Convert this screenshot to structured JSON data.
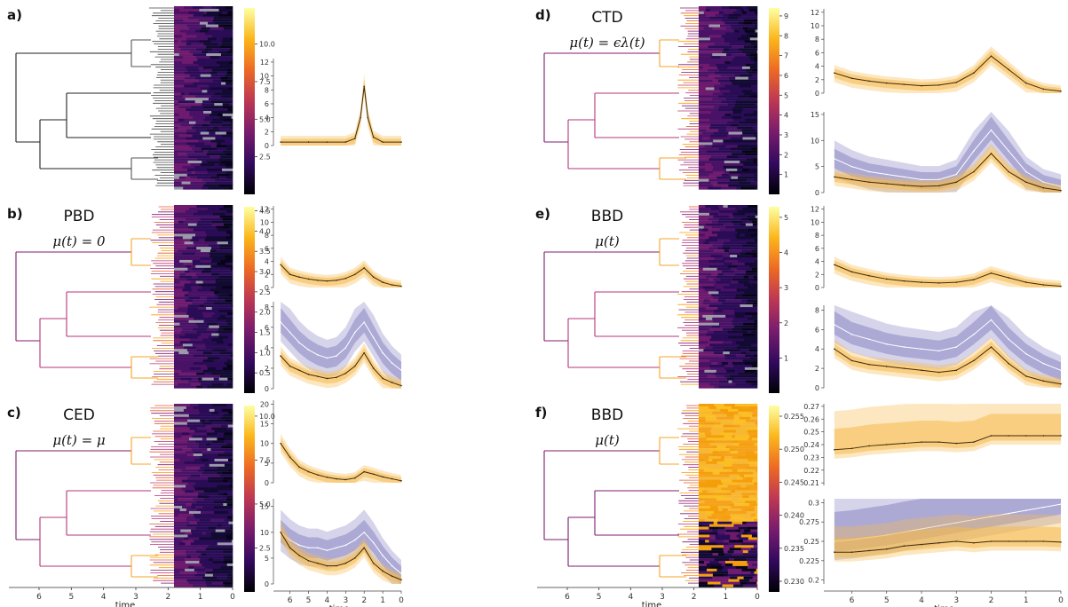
{
  "panels": [
    {
      "id": "a",
      "label": "a)",
      "title": "",
      "subtitle": "",
      "colorbar_ticks": [
        "10.0",
        "7.5",
        "5.0",
        "2.5"
      ],
      "colorbar_max": 12.4
    },
    {
      "id": "b",
      "label": "b)",
      "title": "PBD",
      "subtitle": "μ(t) = 0",
      "colorbar_ticks": [
        "4.5",
        "4.0",
        "3.5",
        "3.0",
        "2.5",
        "2.0",
        "1.5",
        "1.0",
        "0.5"
      ],
      "colorbar_max": 4.6
    },
    {
      "id": "c",
      "label": "c)",
      "title": "CED",
      "subtitle": "μ(t) = μ",
      "colorbar_ticks": [
        "10.0",
        "7.5",
        "5.0",
        "2.5"
      ],
      "colorbar_max": 10.6
    },
    {
      "id": "d",
      "label": "d)",
      "title": "CTD",
      "subtitle": "μ(t) = ϵλ(t)",
      "colorbar_ticks": [
        "9",
        "8",
        "7",
        "6",
        "5",
        "4",
        "3",
        "2",
        "1"
      ],
      "colorbar_max": 9.4
    },
    {
      "id": "e",
      "label": "e)",
      "title": "BBD",
      "subtitle": "μ(t)",
      "colorbar_ticks": [
        "5",
        "4",
        "3",
        "2",
        "1"
      ],
      "colorbar_max": 5.3
    },
    {
      "id": "f",
      "label": "f)",
      "title": "BBD",
      "subtitle": "μ(t)",
      "colorbar_ticks": [
        "0.255",
        "0.250",
        "0.245",
        "0.240",
        "0.235",
        "0.230"
      ],
      "colorbar_max": 0.258
    }
  ],
  "tree_axis": {
    "label": "time",
    "ticks": [
      "6",
      "5",
      "4",
      "3",
      "2",
      "1",
      "0"
    ]
  },
  "colors": {
    "orange": "#f5b94a",
    "orange_dark": "#3b2a10",
    "purple": "#8a85c2",
    "line": "#555555"
  },
  "chart_data": [
    {
      "type": "area",
      "panel": "a-top",
      "x": [
        6.5,
        5.0,
        4.0,
        3.0,
        2.5,
        2.2,
        2.0,
        1.8,
        1.5,
        1.0,
        0.0
      ],
      "series": [
        {
          "values": [
            0.5,
            0.5,
            0.5,
            0.5,
            1.0,
            4.0,
            8.5,
            4.0,
            1.2,
            0.5,
            0.5
          ]
        }
      ],
      "ylim": [
        0,
        12.5
      ],
      "yticks": [
        0,
        2,
        4,
        6,
        8,
        10,
        12
      ],
      "xticks": []
    },
    {
      "type": "area",
      "panel": "b-top",
      "x": [
        6.5,
        6.0,
        5.5,
        5.0,
        4.5,
        4.0,
        3.5,
        3.0,
        2.5,
        2.0,
        1.5,
        1.0,
        0.5,
        0.0
      ],
      "series": [
        {
          "values": [
            3.5,
            2.0,
            1.6,
            1.3,
            1.1,
            1.0,
            1.1,
            1.4,
            2.0,
            3.0,
            1.6,
            0.8,
            0.4,
            0.2
          ]
        }
      ],
      "ylim": [
        0,
        12.5
      ],
      "yticks": [
        0,
        2,
        4,
        6,
        8,
        10,
        12
      ],
      "xticks": []
    },
    {
      "type": "area",
      "panel": "b-bottom",
      "x": [
        6.5,
        6.0,
        5.5,
        5.0,
        4.5,
        4.0,
        3.5,
        3.0,
        2.5,
        2.0,
        1.5,
        1.0,
        0.5,
        0.0
      ],
      "series": [
        {
          "values": [
            6.5,
            5.5,
            4.5,
            3.8,
            3.3,
            3.0,
            3.2,
            4.0,
            5.5,
            6.5,
            5.0,
            3.5,
            2.5,
            1.8
          ]
        },
        {
          "values": [
            3.2,
            2.2,
            1.8,
            1.4,
            1.2,
            1.0,
            1.1,
            1.5,
            2.2,
            3.5,
            2.0,
            1.0,
            0.6,
            0.3
          ]
        }
      ],
      "ylim": [
        0,
        8.5
      ],
      "yticks": [
        0,
        2,
        4,
        6,
        8
      ],
      "xticks": []
    },
    {
      "type": "area",
      "panel": "c-top",
      "x": [
        6.5,
        6.0,
        5.5,
        5.0,
        4.5,
        4.0,
        3.5,
        3.0,
        2.5,
        2.0,
        1.5,
        1.0,
        0.5,
        0.0
      ],
      "series": [
        {
          "values": [
            10.0,
            6.5,
            4.0,
            2.8,
            2.0,
            1.4,
            1.0,
            0.8,
            1.2,
            2.8,
            2.2,
            1.5,
            1.0,
            0.5
          ]
        }
      ],
      "ylim": [
        0,
        21
      ],
      "yticks": [
        0,
        5,
        10,
        15,
        20
      ],
      "xticks": []
    },
    {
      "type": "area",
      "panel": "c-bottom",
      "x": [
        6.5,
        6.0,
        5.5,
        5.0,
        4.5,
        4.0,
        3.5,
        3.0,
        2.5,
        2.0,
        1.5,
        1.0,
        0.5,
        0.0
      ],
      "series": [
        {
          "values": [
            10.0,
            8.5,
            7.5,
            7.0,
            7.0,
            6.5,
            7.0,
            7.5,
            8.5,
            10.0,
            8.0,
            5.5,
            3.5,
            2.0
          ]
        },
        {
          "values": [
            10.0,
            7.0,
            5.5,
            4.5,
            4.0,
            3.5,
            3.5,
            4.0,
            5.0,
            7.0,
            4.0,
            2.5,
            1.5,
            0.8
          ]
        }
      ],
      "ylim": [
        0,
        16.5
      ],
      "yticks": [
        0,
        5,
        10,
        15
      ],
      "xticks": [
        "6",
        "5",
        "4",
        "3",
        "2",
        "1",
        "0"
      ],
      "xlabel": "time"
    },
    {
      "type": "area",
      "panel": "d-top",
      "x": [
        6.5,
        6.0,
        5.5,
        5.0,
        4.5,
        4.0,
        3.5,
        3.0,
        2.5,
        2.0,
        1.5,
        1.0,
        0.5,
        0.0
      ],
      "series": [
        {
          "values": [
            3.0,
            2.2,
            1.8,
            1.5,
            1.3,
            1.1,
            1.2,
            1.6,
            3.0,
            5.5,
            3.5,
            1.5,
            0.6,
            0.3
          ]
        }
      ],
      "ylim": [
        0,
        12.5
      ],
      "yticks": [
        0,
        2,
        4,
        6,
        8,
        10,
        12
      ],
      "xticks": []
    },
    {
      "type": "area",
      "panel": "d-bottom",
      "x": [
        6.5,
        6.0,
        5.5,
        5.0,
        4.5,
        4.0,
        3.5,
        3.0,
        2.5,
        2.0,
        1.5,
        1.0,
        0.5,
        0.0
      ],
      "series": [
        {
          "values": [
            6.5,
            5.0,
            4.0,
            3.5,
            3.0,
            2.5,
            2.5,
            3.5,
            8.0,
            12.0,
            8.0,
            4.0,
            2.0,
            1.2
          ]
        },
        {
          "values": [
            3.0,
            2.5,
            2.0,
            1.7,
            1.4,
            1.2,
            1.3,
            2.0,
            4.0,
            7.5,
            4.0,
            2.0,
            0.9,
            0.4
          ]
        }
      ],
      "ylim": [
        0,
        15.5
      ],
      "yticks": [
        0,
        5,
        10,
        15
      ],
      "xticks": []
    },
    {
      "type": "area",
      "panel": "e-top",
      "x": [
        6.5,
        6.0,
        5.5,
        5.0,
        4.5,
        4.0,
        3.5,
        3.0,
        2.5,
        2.0,
        1.5,
        1.0,
        0.5,
        0.0
      ],
      "series": [
        {
          "values": [
            3.5,
            2.4,
            1.8,
            1.3,
            1.0,
            0.8,
            0.7,
            0.8,
            1.2,
            2.2,
            1.5,
            0.8,
            0.4,
            0.2
          ]
        }
      ],
      "ylim": [
        0,
        12.5
      ],
      "yticks": [
        0,
        2,
        4,
        6,
        8,
        10,
        12
      ],
      "xticks": []
    },
    {
      "type": "area",
      "panel": "e-bottom",
      "x": [
        6.5,
        6.0,
        5.5,
        5.0,
        4.5,
        4.0,
        3.5,
        3.0,
        2.5,
        2.0,
        1.5,
        1.0,
        0.5,
        0.0
      ],
      "series": [
        {
          "values": [
            6.5,
            5.5,
            5.0,
            4.5,
            4.2,
            4.0,
            3.8,
            4.2,
            5.5,
            7.0,
            5.0,
            3.5,
            2.5,
            1.8
          ]
        },
        {
          "values": [
            4.0,
            2.8,
            2.4,
            2.2,
            2.0,
            1.8,
            1.6,
            1.8,
            2.8,
            4.2,
            2.5,
            1.2,
            0.7,
            0.4
          ]
        }
      ],
      "ylim": [
        0,
        8.5
      ],
      "yticks": [
        0,
        2,
        4,
        6,
        8
      ],
      "xticks": []
    },
    {
      "type": "area",
      "panel": "f-top",
      "x": [
        6.5,
        6.0,
        5.5,
        5.0,
        4.5,
        4.0,
        3.5,
        3.0,
        2.5,
        2.0,
        1.5,
        1.0,
        0.5,
        0.0
      ],
      "series": [
        {
          "values": [
            0.236,
            0.237,
            0.239,
            0.24,
            0.241,
            0.242,
            0.242,
            0.241,
            0.242,
            0.247,
            0.247,
            0.247,
            0.247,
            0.247
          ]
        }
      ],
      "ylim": [
        0.208,
        0.272
      ],
      "yticks": [
        0.21,
        0.22,
        0.23,
        0.24,
        0.25,
        0.26,
        0.27
      ],
      "xticks": []
    },
    {
      "type": "area",
      "panel": "f-bottom",
      "x": [
        6.5,
        6.0,
        5.5,
        5.0,
        4.5,
        4.0,
        3.5,
        3.0,
        2.5,
        2.0,
        1.5,
        1.0,
        0.5,
        0.0
      ],
      "series": [
        {
          "values": [
            0.25,
            0.252,
            0.255,
            0.258,
            0.262,
            0.266,
            0.27,
            0.274,
            0.278,
            0.282,
            0.286,
            0.29,
            0.294,
            0.298
          ]
        },
        {
          "values": [
            0.236,
            0.236,
            0.238,
            0.24,
            0.244,
            0.246,
            0.248,
            0.25,
            0.248,
            0.25,
            0.25,
            0.25,
            0.25,
            0.249
          ]
        }
      ],
      "ylim": [
        0.195,
        0.305
      ],
      "yticks": [
        0.2,
        0.225,
        0.25,
        0.275,
        0.3
      ],
      "xticks": [
        "6",
        "5",
        "4",
        "3",
        "2",
        "1",
        "0"
      ],
      "xlabel": "time"
    }
  ]
}
